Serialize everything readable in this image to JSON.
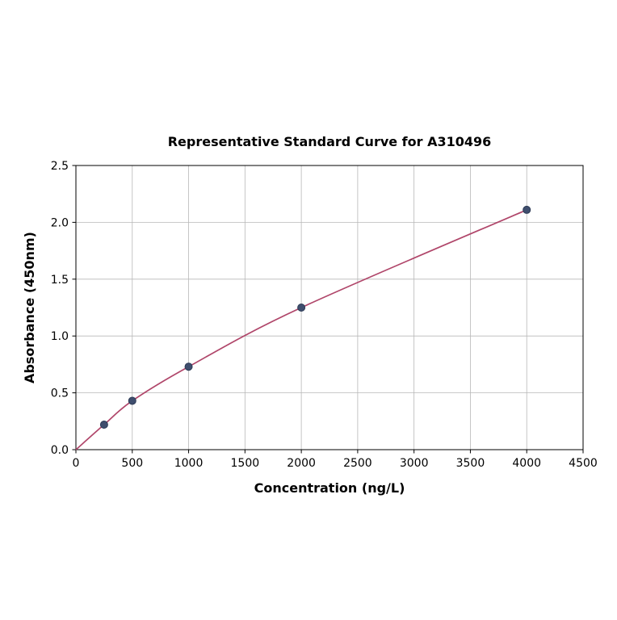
{
  "chart_data": {
    "type": "line",
    "title": "Representative Standard Curve for A310496",
    "xlabel": "Concentration (ng/L)",
    "ylabel": "Absorbance (450nm)",
    "x": [
      250,
      500,
      1000,
      2000,
      4000
    ],
    "y": [
      0.22,
      0.43,
      0.73,
      1.25,
      2.11
    ],
    "curve_start_x": 0,
    "curve_start_y": 0,
    "xlim": [
      0,
      4500
    ],
    "ylim": [
      0,
      2.5
    ],
    "xtick_labels": [
      "0",
      "500",
      "1000",
      "1500",
      "2000",
      "2500",
      "3000",
      "3500",
      "4000",
      "4500"
    ],
    "ytick_labels": [
      "0.0",
      "0.5",
      "1.0",
      "1.5",
      "2.0",
      "2.5"
    ],
    "grid": true,
    "legend": "none",
    "colors": {
      "line": "#b0466a",
      "marker_fill": "#3f4e6e",
      "marker_edge": "#2c3a55",
      "grid": "#b8b8b8",
      "spine": "#000000",
      "background": "#ffffff"
    }
  }
}
